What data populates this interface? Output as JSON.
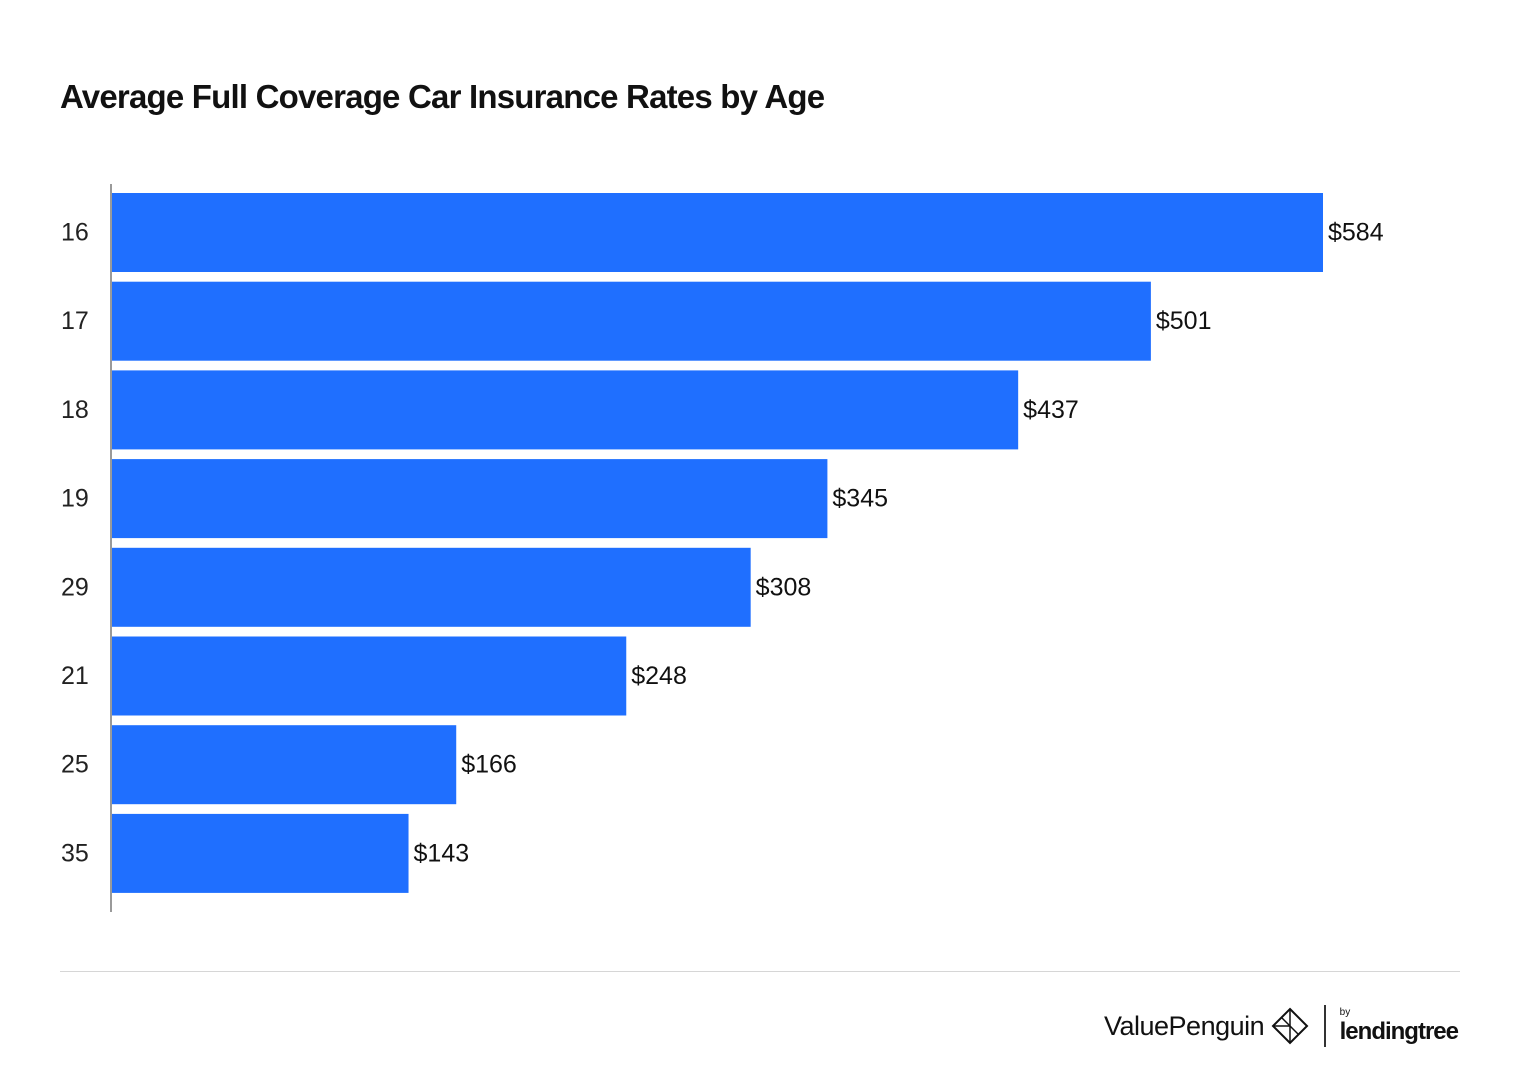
{
  "chart_data": {
    "type": "bar",
    "orientation": "horizontal",
    "title": "Average Full Coverage Car Insurance Rates by Age",
    "xlabel": "",
    "ylabel": "",
    "categories": [
      "16",
      "17",
      "18",
      "19",
      "29",
      "21",
      "25",
      "35"
    ],
    "values": [
      584,
      501,
      437,
      345,
      308,
      248,
      166,
      143
    ],
    "value_labels": [
      "$584",
      "$501",
      "$437",
      "$345",
      "$308",
      "$248",
      "$166",
      "$143"
    ],
    "xlim": [
      0,
      584
    ],
    "grid": false,
    "legend": "none",
    "bar_color": "#1f6fff"
  },
  "footer": {
    "brand": "ValuePenguin",
    "partner_prefix": "by",
    "partner": "lendingtree"
  }
}
